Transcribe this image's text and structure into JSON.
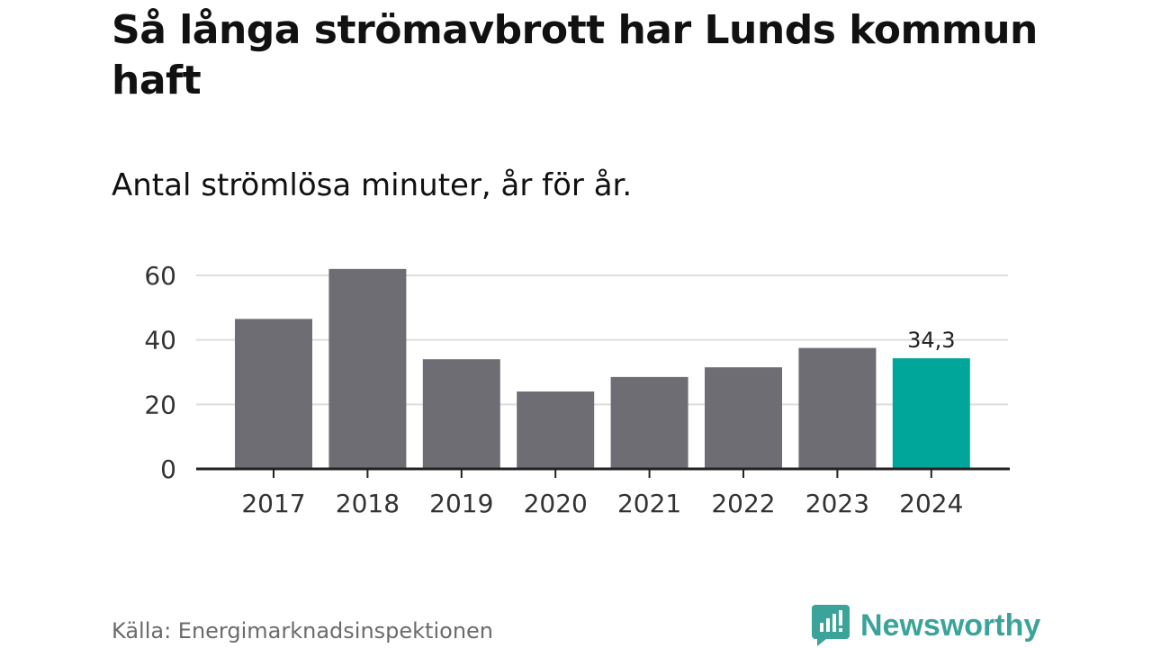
{
  "header": {
    "title": "Så långa strömavbrott har Lunds kommun haft",
    "subtitle": "Antal strömlösa minuter, år för år."
  },
  "footer": {
    "source": "Källa: Energimarknadsinspektionen",
    "brand": "Newsworthy"
  },
  "colors": {
    "bar": "#6e6d73",
    "highlight": "#00a699",
    "grid": "#dddddd",
    "axis": "#222222",
    "brand": "#3aa39a"
  },
  "chart_data": {
    "type": "bar",
    "title": "Så långa strömavbrott har Lunds kommun haft",
    "subtitle": "Antal strömlösa minuter, år för år.",
    "categories": [
      "2017",
      "2018",
      "2019",
      "2020",
      "2021",
      "2022",
      "2023",
      "2024"
    ],
    "values": [
      46.5,
      62,
      34,
      24,
      28.5,
      31.5,
      37.5,
      34.3
    ],
    "highlight_index": 7,
    "data_labels": [
      {
        "index": 7,
        "text": "34,3"
      }
    ],
    "y_ticks": [
      0,
      20,
      40,
      60
    ],
    "y_tick_labels": [
      "0",
      "20",
      "40",
      "60"
    ],
    "ylim": [
      0,
      65
    ],
    "grid": true,
    "xlabel": "",
    "ylabel": ""
  }
}
